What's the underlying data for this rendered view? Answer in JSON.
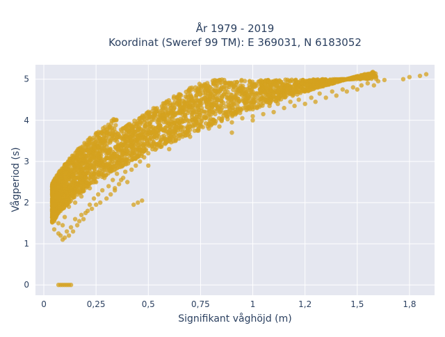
{
  "chart_data": {
    "type": "scatter",
    "title_line1": "År 1979 - 2019",
    "title_line2": "Koordinat (Sweref 99 TM): E 369031, N 6183052",
    "xlabel": "Signifikant våghöjd (m)",
    "ylabel": "Vågperiod (s)",
    "xlim": [
      -0.04,
      1.87
    ],
    "ylim": [
      -0.25,
      5.35
    ],
    "x_ticks": [
      {
        "value": 0,
        "label": "0"
      },
      {
        "value": 0.25,
        "label": "0,25"
      },
      {
        "value": 0.5,
        "label": "0,5"
      },
      {
        "value": 0.75,
        "label": "0,75"
      },
      {
        "value": 1,
        "label": "1"
      },
      {
        "value": 1.25,
        "label": "1,2"
      },
      {
        "value": 1.5,
        "label": "1,5"
      },
      {
        "value": 1.75,
        "label": "1,8"
      }
    ],
    "y_ticks": [
      {
        "value": 0,
        "label": "0"
      },
      {
        "value": 1,
        "label": "1"
      },
      {
        "value": 2,
        "label": "2"
      },
      {
        "value": 3,
        "label": "3"
      },
      {
        "value": 4,
        "label": "4"
      },
      {
        "value": 5,
        "label": "5"
      }
    ],
    "grid": true,
    "marker_color": "#d4a21f",
    "plot_background": "#e5e7f0",
    "points": [
      [
        0.05,
        1.35
      ],
      [
        0.05,
        1.55
      ],
      [
        0.06,
        1.7
      ],
      [
        0.06,
        2.0
      ],
      [
        0.07,
        1.25
      ],
      [
        0.07,
        1.5
      ],
      [
        0.07,
        2.25
      ],
      [
        0.08,
        1.2
      ],
      [
        0.08,
        1.8
      ],
      [
        0.09,
        1.1
      ],
      [
        0.09,
        1.45
      ],
      [
        0.1,
        1.15
      ],
      [
        0.1,
        1.65
      ],
      [
        0.1,
        2.2
      ],
      [
        0.11,
        1.3
      ],
      [
        0.12,
        1.2
      ],
      [
        0.12,
        1.9
      ],
      [
        0.13,
        1.4
      ],
      [
        0.13,
        2.3
      ],
      [
        0.14,
        1.3
      ],
      [
        0.15,
        1.6
      ],
      [
        0.15,
        2.0
      ],
      [
        0.16,
        1.45
      ],
      [
        0.16,
        2.45
      ],
      [
        0.17,
        1.55
      ],
      [
        0.18,
        1.7
      ],
      [
        0.18,
        2.15
      ],
      [
        0.19,
        1.6
      ],
      [
        0.2,
        1.75
      ],
      [
        0.2,
        2.5
      ],
      [
        0.21,
        1.8
      ],
      [
        0.22,
        1.95
      ],
      [
        0.22,
        2.35
      ],
      [
        0.23,
        1.85
      ],
      [
        0.24,
        2.1
      ],
      [
        0.24,
        2.7
      ],
      [
        0.25,
        1.95
      ],
      [
        0.25,
        2.5
      ],
      [
        0.26,
        2.2
      ],
      [
        0.27,
        2.0
      ],
      [
        0.27,
        2.9
      ],
      [
        0.28,
        2.3
      ],
      [
        0.29,
        2.6
      ],
      [
        0.3,
        2.1
      ],
      [
        0.3,
        2.8
      ],
      [
        0.31,
        2.4
      ],
      [
        0.32,
        2.2
      ],
      [
        0.32,
        3.1
      ],
      [
        0.33,
        2.55
      ],
      [
        0.34,
        2.3
      ],
      [
        0.35,
        2.7
      ],
      [
        0.35,
        3.3
      ],
      [
        0.36,
        2.45
      ],
      [
        0.37,
        2.9
      ],
      [
        0.38,
        2.6
      ],
      [
        0.38,
        3.4
      ],
      [
        0.39,
        2.75
      ],
      [
        0.4,
        2.5
      ],
      [
        0.4,
        3.05
      ],
      [
        0.41,
        3.6
      ],
      [
        0.42,
        2.8
      ],
      [
        0.43,
        3.2
      ],
      [
        0.44,
        2.9
      ],
      [
        0.45,
        3.4
      ],
      [
        0.45,
        2.0
      ],
      [
        0.46,
        3.0
      ],
      [
        0.47,
        3.5
      ],
      [
        0.48,
        3.1
      ],
      [
        0.49,
        3.7
      ],
      [
        0.5,
        3.2
      ],
      [
        0.5,
        2.9
      ],
      [
        0.52,
        3.3
      ],
      [
        0.53,
        3.6
      ],
      [
        0.55,
        3.4
      ],
      [
        0.56,
        3.8
      ],
      [
        0.58,
        3.45
      ],
      [
        0.6,
        3.55
      ],
      [
        0.61,
        3.9
      ],
      [
        0.63,
        3.5
      ],
      [
        0.65,
        3.65
      ],
      [
        0.66,
        4.0
      ],
      [
        0.68,
        3.7
      ],
      [
        0.7,
        3.6
      ],
      [
        0.7,
        3.85
      ],
      [
        0.72,
        4.05
      ],
      [
        0.74,
        3.75
      ],
      [
        0.75,
        3.9
      ],
      [
        0.77,
        4.1
      ],
      [
        0.79,
        3.8
      ],
      [
        0.8,
        3.95
      ],
      [
        0.82,
        4.15
      ],
      [
        0.84,
        3.85
      ],
      [
        0.85,
        4.0
      ],
      [
        0.87,
        4.9
      ],
      [
        0.88,
        4.1
      ],
      [
        0.9,
        3.95
      ],
      [
        0.92,
        4.2
      ],
      [
        0.95,
        4.05
      ],
      [
        0.97,
        4.25
      ],
      [
        1.0,
        4.1
      ],
      [
        1.02,
        4.3
      ],
      [
        1.04,
        4.85
      ],
      [
        1.05,
        4.15
      ],
      [
        1.08,
        4.35
      ],
      [
        1.1,
        4.2
      ],
      [
        1.12,
        4.4
      ],
      [
        1.15,
        4.3
      ],
      [
        1.18,
        4.45
      ],
      [
        1.2,
        4.35
      ],
      [
        1.22,
        4.5
      ],
      [
        1.25,
        4.4
      ],
      [
        1.28,
        4.55
      ],
      [
        1.3,
        4.45
      ],
      [
        1.32,
        4.65
      ],
      [
        1.35,
        4.55
      ],
      [
        1.38,
        4.7
      ],
      [
        1.4,
        4.6
      ],
      [
        1.43,
        4.75
      ],
      [
        1.45,
        4.7
      ],
      [
        1.48,
        4.8
      ],
      [
        1.5,
        4.75
      ],
      [
        1.52,
        4.85
      ],
      [
        1.55,
        4.9
      ],
      [
        1.58,
        4.85
      ],
      [
        1.6,
        4.95
      ],
      [
        1.63,
        4.98
      ],
      [
        1.72,
        5.0
      ],
      [
        1.75,
        5.05
      ],
      [
        1.8,
        5.08
      ],
      [
        1.83,
        5.12
      ],
      [
        0.07,
        0.0
      ],
      [
        0.08,
        0.0
      ],
      [
        0.09,
        0.0
      ],
      [
        0.1,
        0.0
      ],
      [
        0.11,
        0.0
      ],
      [
        0.12,
        0.0
      ],
      [
        0.13,
        0.0
      ],
      [
        0.34,
        2.35
      ],
      [
        0.37,
        2.55
      ],
      [
        0.43,
        1.95
      ],
      [
        0.47,
        2.05
      ],
      [
        0.9,
        3.7
      ],
      [
        1.0,
        4.0
      ],
      [
        0.6,
        3.3
      ]
    ]
  }
}
